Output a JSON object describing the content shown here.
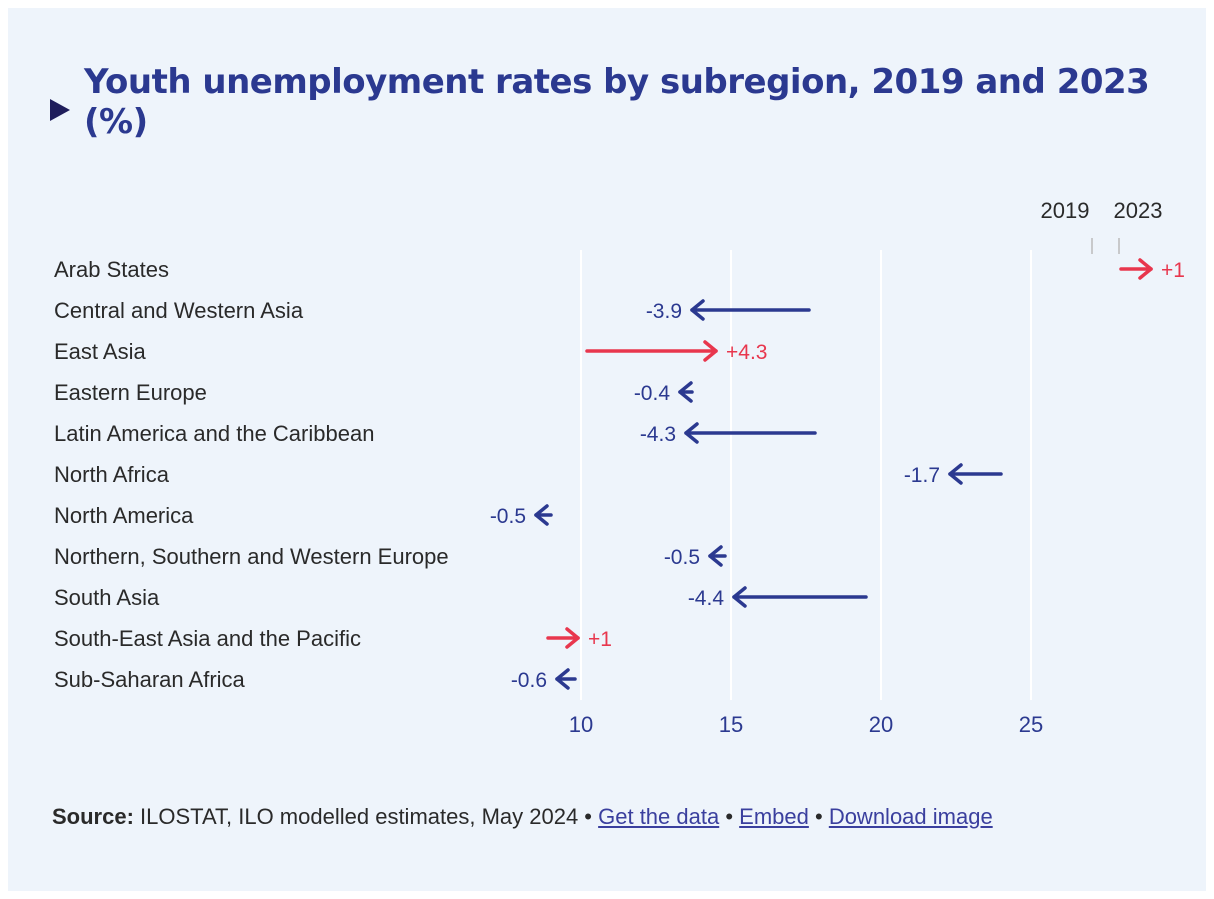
{
  "title": "Youth unemployment rates by subregion, 2019 and 2023 (%)",
  "legend": {
    "start": "2019",
    "end": "2023"
  },
  "colors": {
    "decrease": "#2b3990",
    "increase": "#e8364d",
    "title": "#2b3990",
    "grid": "#ffffff"
  },
  "chart_data": {
    "type": "arrow",
    "title": "Youth unemployment rates by subregion, 2019 and 2023 (%)",
    "xlabel": "",
    "ylabel": "",
    "xlim": [
      6.8,
      28.7
    ],
    "xticks": [
      10,
      15,
      20,
      25
    ],
    "grid": true,
    "legend": "top-right",
    "series": [
      {
        "name": "2019",
        "values": [
          28.0,
          17.6,
          10.2,
          13.7,
          17.8,
          24.0,
          9.0,
          14.8,
          19.5,
          8.9,
          9.8
        ]
      },
      {
        "name": "2023",
        "values": [
          29.0,
          13.7,
          14.5,
          13.3,
          13.5,
          22.3,
          8.5,
          14.3,
          15.1,
          9.9,
          9.2
        ]
      }
    ],
    "categories": [
      "Arab States",
      "Central and Western Asia",
      "East Asia",
      "Eastern Europe",
      "Latin America and the Caribbean",
      "North Africa",
      "North America",
      "Northern, Southern and Western Europe",
      "South Asia",
      "South-East Asia and the Pacific",
      "Sub-Saharan Africa"
    ],
    "changes": [
      "+1",
      "-3.9",
      "+4.3",
      "-0.4",
      "-4.3",
      "-1.7",
      "-0.5",
      "-0.5",
      "-4.4",
      "+1",
      "-0.6"
    ]
  },
  "source": {
    "label": "Source:",
    "text": " ILOSTAT, ILO modelled estimates, May 2024",
    "sep": " • ",
    "links": [
      "Get the data",
      "Embed",
      "Download image"
    ]
  }
}
